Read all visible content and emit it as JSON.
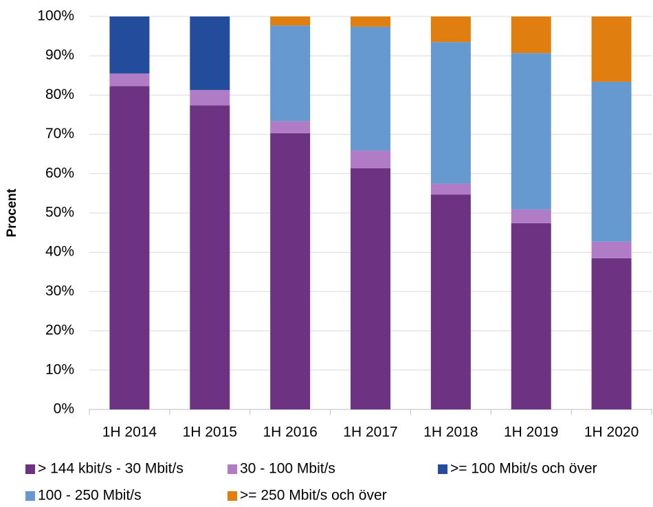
{
  "chart_data": {
    "type": "stacked_bar",
    "y_label": "Procent",
    "categories": [
      "1H 2014",
      "1H 2015",
      "1H 2016",
      "1H 2017",
      "1H 2018",
      "1H 2019",
      "1H 2020"
    ],
    "series": [
      {
        "name": "> 144 kbit/s - 30 Mbit/s",
        "color": "#6e3282",
        "values": [
          82.3,
          77.4,
          70.3,
          61.4,
          54.7,
          47.4,
          38.5
        ]
      },
      {
        "name": "30 - 100 Mbit/s",
        "color": "#b07cc6",
        "values": [
          3.2,
          3.9,
          3.1,
          4.5,
          2.8,
          3.5,
          4.2
        ]
      },
      {
        "name": ">= 100 Mbit/s och över",
        "color": "#244c9c",
        "values": [
          14.5,
          18.7,
          0,
          0,
          0,
          0,
          0
        ]
      },
      {
        "name": "100 - 250 Mbit/s",
        "color": "#6699d0",
        "values": [
          0,
          0,
          24.3,
          31.5,
          36.0,
          39.8,
          40.7
        ]
      },
      {
        "name": ">= 250 Mbit/s och över",
        "color": "#e07e10",
        "values": [
          0,
          0,
          2.3,
          2.6,
          6.5,
          9.3,
          16.6
        ]
      }
    ],
    "ylim": [
      0,
      100
    ],
    "yticks": [
      {
        "value": 0,
        "label": "0%"
      },
      {
        "value": 10,
        "label": "10%"
      },
      {
        "value": 20,
        "label": "20%"
      },
      {
        "value": 30,
        "label": "30%"
      },
      {
        "value": 40,
        "label": "40%"
      },
      {
        "value": 50,
        "label": "50%"
      },
      {
        "value": 60,
        "label": "60%"
      },
      {
        "value": 70,
        "label": "70%"
      },
      {
        "value": 80,
        "label": "80%"
      },
      {
        "value": 90,
        "label": "90%"
      },
      {
        "value": 100,
        "label": "100%"
      }
    ],
    "grid": true,
    "legend": "bottom"
  }
}
